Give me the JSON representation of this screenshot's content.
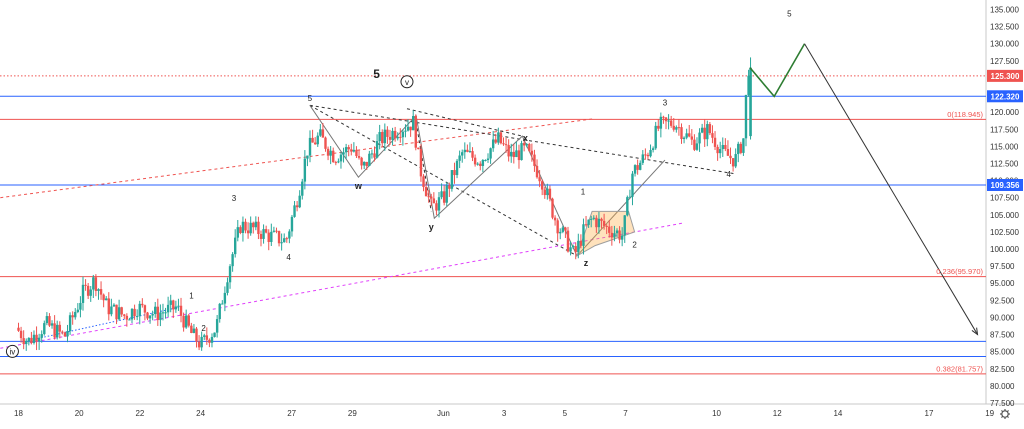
{
  "chart_data": {
    "type": "candlestick",
    "symbol_timeframe": "",
    "y_axis": {
      "min": 77.5,
      "max": 135.0,
      "step": 2.5,
      "tick_labels": [
        "135.000",
        "132.500",
        "130.000",
        "127.500",
        "125.000",
        "122.500",
        "120.000",
        "117.500",
        "115.000",
        "112.500",
        "110.000",
        "107.500",
        "105.000",
        "102.500",
        "100.000",
        "97.500",
        "95.000",
        "92.500",
        "90.000",
        "87.500",
        "85.000",
        "82.500",
        "80.000",
        "77.500"
      ]
    },
    "x_axis": {
      "tick_labels": [
        "18",
        "20",
        "22",
        "24",
        "27",
        "29",
        "Jun",
        "3",
        "5",
        "7",
        "10",
        "12",
        "14",
        "17",
        "19"
      ],
      "tick_index": [
        0,
        2,
        4,
        6,
        9,
        11,
        14,
        16,
        18,
        20,
        23,
        25,
        27,
        30,
        32
      ]
    },
    "price_badges": [
      {
        "value": 125.3,
        "label": "125.300",
        "color": "#ef5350"
      },
      {
        "value": 122.32,
        "label": "122.320",
        "color": "#2962ff"
      },
      {
        "value": 109.356,
        "label": "109.356",
        "color": "#2962ff"
      }
    ],
    "horizontal_lines": [
      {
        "value": 125.3,
        "color": "#ef5350",
        "style": "dotted"
      },
      {
        "value": 122.32,
        "color": "#2962ff",
        "style": "solid"
      },
      {
        "value": 118.945,
        "color": "#ef5350",
        "style": "solid"
      },
      {
        "value": 109.356,
        "color": "#2962ff",
        "style": "solid"
      },
      {
        "value": 95.97,
        "color": "#ef5350",
        "style": "solid"
      },
      {
        "value": 86.5,
        "color": "#2962ff",
        "style": "solid"
      },
      {
        "value": 84.3,
        "color": "#2962ff",
        "style": "solid"
      },
      {
        "value": 81.757,
        "color": "#ef5350",
        "style": "solid"
      }
    ],
    "fib_labels": [
      {
        "text": "0(118.945)",
        "value": 118.945
      },
      {
        "text": "0.236(95.970)",
        "value": 95.97
      },
      {
        "text": "0.382(81.757)",
        "value": 81.757
      }
    ],
    "wave_labels": [
      {
        "text": "(iv)",
        "x": -0.2,
        "y": 84.6,
        "circled": true
      },
      {
        "text": "1",
        "x": 5.7,
        "y": 92.8
      },
      {
        "text": "2",
        "x": 6.1,
        "y": 88.0
      },
      {
        "text": "3",
        "x": 7.1,
        "y": 107.0
      },
      {
        "text": "4",
        "x": 8.9,
        "y": 98.4
      },
      {
        "text": "5",
        "x": 9.6,
        "y": 121.6
      },
      {
        "text": "5",
        "x": 11.8,
        "y": 125.0,
        "size": "large"
      },
      {
        "text": "(v)",
        "x": 12.8,
        "y": 124.0,
        "circled": true
      },
      {
        "text": "w",
        "x": 11.2,
        "y": 108.8,
        "size": "bold"
      },
      {
        "text": "x",
        "x": 16.7,
        "y": 115.8,
        "size": "bold"
      },
      {
        "text": "y",
        "x": 13.6,
        "y": 102.8,
        "size": "bold"
      },
      {
        "text": "z",
        "x": 18.7,
        "y": 97.5,
        "size": "bold"
      },
      {
        "text": "1",
        "x": 18.6,
        "y": 108.0
      },
      {
        "text": "2",
        "x": 20.3,
        "y": 100.2
      },
      {
        "text": "3",
        "x": 21.3,
        "y": 121.0
      },
      {
        "text": "4",
        "x": 23.4,
        "y": 110.5
      },
      {
        "text": "5",
        "x": 25.4,
        "y": 134.0
      }
    ],
    "projection_green": [
      [
        24.1,
        126.5
      ],
      [
        24.9,
        122.3
      ],
      [
        25.9,
        130.0
      ]
    ],
    "projection_arrow": [
      [
        25.9,
        130.0
      ],
      [
        31.6,
        87.5
      ]
    ],
    "ohlc_anchors": [
      [
        0.0,
        88.5
      ],
      [
        0.4,
        86.5
      ],
      [
        1.0,
        89.0
      ],
      [
        1.6,
        87.2
      ],
      [
        2.2,
        93.5
      ],
      [
        2.6,
        95.5
      ],
      [
        3.0,
        91.5
      ],
      [
        3.6,
        90.2
      ],
      [
        4.0,
        91.5
      ],
      [
        4.6,
        90.5
      ],
      [
        5.3,
        91.5
      ],
      [
        5.8,
        87.5
      ],
      [
        6.1,
        86.0
      ],
      [
        6.6,
        88.5
      ],
      [
        7.0,
        97.0
      ],
      [
        7.4,
        103.5
      ],
      [
        7.8,
        103.0
      ],
      [
        8.3,
        102.0
      ],
      [
        8.9,
        101.2
      ],
      [
        9.3,
        108.0
      ],
      [
        9.6,
        114.5
      ],
      [
        10.0,
        116.5
      ],
      [
        10.5,
        113.5
      ],
      [
        11.1,
        115.0
      ],
      [
        11.4,
        111.5
      ],
      [
        12.0,
        116.0
      ],
      [
        12.6,
        117.5
      ],
      [
        13.1,
        118.5
      ],
      [
        13.3,
        112.0
      ],
      [
        13.7,
        106.0
      ],
      [
        14.1,
        107.5
      ],
      [
        14.7,
        114.0
      ],
      [
        15.3,
        113.0
      ],
      [
        15.9,
        116.0
      ],
      [
        16.3,
        113.5
      ],
      [
        16.8,
        114.5
      ],
      [
        17.3,
        110.5
      ],
      [
        17.8,
        104.0
      ],
      [
        18.4,
        99.0
      ],
      [
        18.7,
        102.5
      ],
      [
        19.0,
        104.5
      ],
      [
        19.5,
        103.0
      ],
      [
        20.0,
        102.0
      ],
      [
        20.3,
        111.0
      ],
      [
        20.8,
        114.0
      ],
      [
        21.2,
        118.0
      ],
      [
        21.7,
        118.5
      ],
      [
        22.3,
        115.5
      ],
      [
        22.8,
        117.5
      ],
      [
        23.3,
        114.0
      ],
      [
        23.7,
        113.0
      ],
      [
        24.0,
        116.5
      ],
      [
        24.1,
        126.5
      ]
    ]
  }
}
